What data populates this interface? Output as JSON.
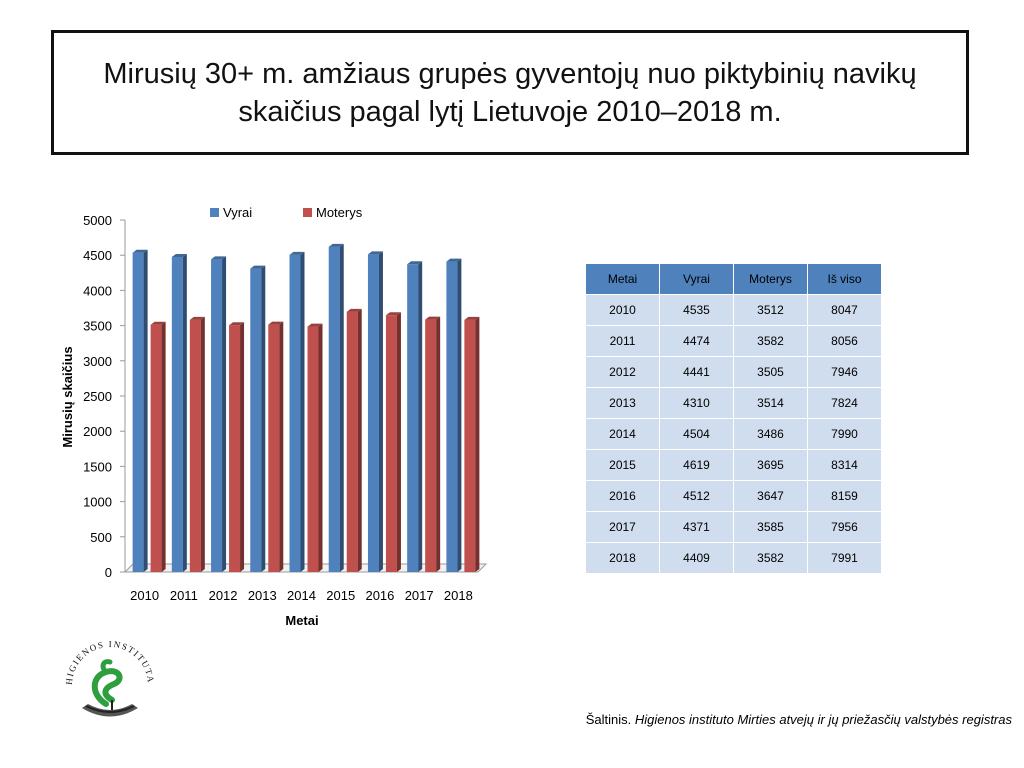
{
  "title": "Mirusių 30+ m. amžiaus grupės gyventojų nuo piktybinių navikų skaičius pagal lytį Lietuvoje 2010–2018 m.",
  "colors": {
    "vyrai": "#4f81bd",
    "moterys": "#c0504d",
    "table_header": "#4f81bd",
    "table_cell": "#cfddee",
    "logo_green": "#2e9e3e"
  },
  "chart_data": {
    "type": "bar",
    "categories": [
      "2010",
      "2011",
      "2012",
      "2013",
      "2014",
      "2015",
      "2016",
      "2017",
      "2018"
    ],
    "series": [
      {
        "name": "Vyrai",
        "values": [
          4535,
          4474,
          4441,
          4310,
          4504,
          4619,
          4512,
          4371,
          4409
        ]
      },
      {
        "name": "Moterys",
        "values": [
          3512,
          3582,
          3505,
          3514,
          3486,
          3695,
          3647,
          3585,
          3582
        ]
      }
    ],
    "xlabel": "Metai",
    "ylabel": "Mirusių skaičius",
    "ylim": [
      0,
      5000
    ],
    "yticks": [
      0,
      500,
      1000,
      1500,
      2000,
      2500,
      3000,
      3500,
      4000,
      4500,
      5000
    ],
    "legend": "top",
    "grid": false
  },
  "table": {
    "headers": [
      "Metai",
      "Vyrai",
      "Moterys",
      "Iš viso"
    ],
    "rows": [
      [
        "2010",
        "4535",
        "3512",
        "8047"
      ],
      [
        "2011",
        "4474",
        "3582",
        "8056"
      ],
      [
        "2012",
        "4441",
        "3505",
        "7946"
      ],
      [
        "2013",
        "4310",
        "3514",
        "7824"
      ],
      [
        "2014",
        "4504",
        "3486",
        "7990"
      ],
      [
        "2015",
        "4619",
        "3695",
        "8314"
      ],
      [
        "2016",
        "4512",
        "3647",
        "8159"
      ],
      [
        "2017",
        "4371",
        "3585",
        "7956"
      ],
      [
        "2018",
        "4409",
        "3582",
        "7991"
      ]
    ]
  },
  "logo": {
    "text": "HIGIENOS INSTITUTAS",
    "icon": "serpent-bowl-icon"
  },
  "source": {
    "prefix": "Šaltinis. ",
    "italic": "Higienos instituto  Mirties atvejų ir jų priežasčių valstybės registras"
  }
}
